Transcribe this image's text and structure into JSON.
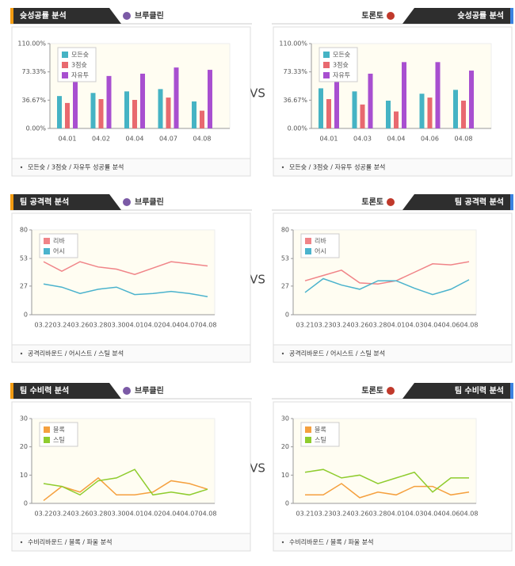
{
  "vs": [
    "VS",
    "VS",
    "VS"
  ],
  "chart_data": [
    {
      "type": "bar",
      "title": "슛성공률 분석",
      "team": "브루클린",
      "footer": "모든슛 / 3점슛 / 자유투 성공률 분석",
      "categories": [
        "04.01",
        "04.02",
        "04.04",
        "04.07",
        "04.08"
      ],
      "series": [
        {
          "name": "모든슛",
          "color": "#45b3c4",
          "values": [
            42,
            46,
            48,
            51,
            35
          ]
        },
        {
          "name": "3점슛",
          "color": "#e8696f",
          "values": [
            33,
            38,
            37,
            40,
            23
          ]
        },
        {
          "name": "자유투",
          "color": "#a84fd0",
          "values": [
            64,
            68,
            71,
            79,
            76
          ]
        }
      ],
      "ylim": [
        0,
        110
      ],
      "yticks": [
        {
          "value": 0,
          "label": "0.00%"
        },
        {
          "value": 36.67,
          "label": "36.67%"
        },
        {
          "value": 73.33,
          "label": "73.33%"
        },
        {
          "value": 110,
          "label": "110.00%"
        }
      ],
      "legend": "upper left"
    },
    {
      "type": "bar",
      "title": "슛성공률 분석",
      "team": "토론토",
      "footer": "모든슛 / 3점슛 / 자유투 성공률 분석",
      "categories": [
        "04.01",
        "04.03",
        "04.04",
        "04.06",
        "04.08"
      ],
      "series": [
        {
          "name": "모든슛",
          "color": "#45b3c4",
          "values": [
            52,
            48,
            36,
            45,
            50
          ]
        },
        {
          "name": "3점슛",
          "color": "#e8696f",
          "values": [
            38,
            31,
            22,
            40,
            36
          ]
        },
        {
          "name": "자유투",
          "color": "#a84fd0",
          "values": [
            64,
            71,
            86,
            86,
            75
          ]
        }
      ],
      "ylim": [
        0,
        110
      ],
      "yticks": [
        {
          "value": 0,
          "label": "0.00%"
        },
        {
          "value": 36.67,
          "label": "36.67%"
        },
        {
          "value": 73.33,
          "label": "73.33%"
        },
        {
          "value": 110,
          "label": "110.00%"
        }
      ],
      "legend": "upper left"
    },
    {
      "type": "line",
      "title": "팀 공격력 분석",
      "team": "브루클린",
      "footer": "공격리바운드 / 어시스트 / 스틸 분석",
      "categories": [
        "03.22",
        "03.24",
        "03.26",
        "03.28",
        "03.30",
        "04.01",
        "04.02",
        "04.04",
        "04.07",
        "04.08"
      ],
      "series": [
        {
          "name": "리바",
          "color": "#f08488",
          "values": [
            50,
            41,
            50,
            45,
            43,
            38,
            44,
            50,
            48,
            46
          ]
        },
        {
          "name": "어시",
          "color": "#4bb3cd",
          "values": [
            29,
            26,
            20,
            24,
            26,
            19,
            20,
            22,
            20,
            17
          ]
        }
      ],
      "ylim": [
        0,
        80
      ],
      "yticks": [
        0,
        27,
        53,
        80
      ],
      "legend": "upper left"
    },
    {
      "type": "line",
      "title": "팀 공격력 분석",
      "team": "토론토",
      "footer": "공격리바운드 / 어시스트 / 스틸 분석",
      "categories": [
        "03.21",
        "03.23",
        "03.24",
        "03.26",
        "03.28",
        "04.01",
        "04.03",
        "04.04",
        "04.06",
        "04.08"
      ],
      "series": [
        {
          "name": "리바",
          "color": "#f08488",
          "values": [
            32,
            37,
            42,
            30,
            29,
            32,
            40,
            48,
            47,
            50
          ]
        },
        {
          "name": "어시",
          "color": "#4bb3cd",
          "values": [
            21,
            34,
            28,
            24,
            32,
            32,
            25,
            19,
            24,
            33
          ]
        }
      ],
      "ylim": [
        0,
        80
      ],
      "yticks": [
        0,
        27,
        53,
        80
      ],
      "legend": "upper left"
    },
    {
      "type": "line",
      "title": "팀 수비력 분석",
      "team": "브루클린",
      "footer": "수비리바운드 / 블록 / 파울 분석",
      "categories": [
        "03.22",
        "03.24",
        "03.26",
        "03.28",
        "03.30",
        "04.01",
        "04.02",
        "04.04",
        "04.07",
        "04.08"
      ],
      "series": [
        {
          "name": "블록",
          "color": "#f5a03e",
          "values": [
            1,
            6,
            4,
            9,
            3,
            3,
            4,
            8,
            7,
            5
          ]
        },
        {
          "name": "스틸",
          "color": "#8fcc2e",
          "values": [
            7,
            6,
            3,
            8,
            9,
            12,
            3,
            4,
            3,
            5
          ]
        }
      ],
      "ylim": [
        0,
        30
      ],
      "yticks": [
        0,
        10,
        20,
        30
      ],
      "legend": "upper left"
    },
    {
      "type": "line",
      "title": "팀 수비력 분석",
      "team": "토론토",
      "footer": "수비리바운드 / 블록 / 파울 분석",
      "categories": [
        "03.21",
        "03.23",
        "03.24",
        "03.26",
        "03.28",
        "04.01",
        "04.03",
        "04.04",
        "04.06",
        "04.08"
      ],
      "series": [
        {
          "name": "블록",
          "color": "#f5a03e",
          "values": [
            3,
            3,
            7,
            2,
            4,
            3,
            6,
            6,
            3,
            4
          ]
        },
        {
          "name": "스틸",
          "color": "#8fcc2e",
          "values": [
            11,
            12,
            9,
            10,
            7,
            9,
            11,
            4,
            9,
            9
          ]
        }
      ],
      "ylim": [
        0,
        30
      ],
      "yticks": [
        0,
        10,
        20,
        30
      ],
      "legend": "upper left"
    }
  ]
}
